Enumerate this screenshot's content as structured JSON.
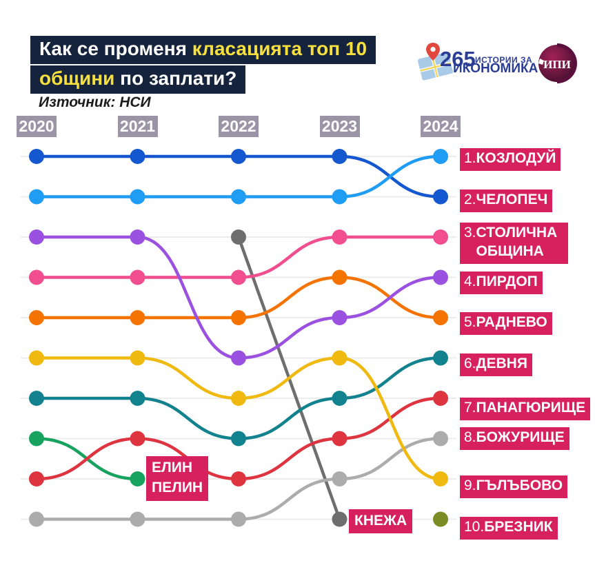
{
  "title": {
    "line1_white": "Как се променя ",
    "line1_yellow": "класацията топ 10",
    "line2_yellow": "общини",
    "line2_white": " по заплати?",
    "source": "Източник: НСИ"
  },
  "logo": {
    "number": "265",
    "tagline_top": "ИСТОРИИ ЗА",
    "tagline_bottom": "ИКОНОМИКА",
    "badge": "ИПИ"
  },
  "colors": {
    "title_bg": "#16233C",
    "title_yellow": "#F6E03E",
    "label_bg": "#D7215E",
    "year_chip_bg": "#9B93A6",
    "gridline": "#ececec",
    "logo_navy": "#2B3C94"
  },
  "chart_data": {
    "type": "line",
    "subtype": "bump-ranking",
    "x": [
      "2020",
      "2021",
      "2022",
      "2023",
      "2024"
    ],
    "rank_axis": {
      "min": 1,
      "max": 10,
      "top_is_best": true
    },
    "grid": true,
    "series": [
      {
        "name": "Козлодуй",
        "color": "#1F9CF4",
        "ranks": [
          2,
          2,
          2,
          2,
          1
        ]
      },
      {
        "name": "Челопеч",
        "color": "#1457CE",
        "ranks": [
          1,
          1,
          1,
          1,
          2
        ]
      },
      {
        "name": "Столична община",
        "color": "#F04E8F",
        "ranks": [
          4,
          4,
          4,
          3,
          3
        ]
      },
      {
        "name": "Пирдоп",
        "color": "#9B51E0",
        "ranks": [
          3,
          3,
          6,
          5,
          4
        ]
      },
      {
        "name": "Раднево",
        "color": "#F57300",
        "ranks": [
          5,
          5,
          5,
          4,
          5
        ]
      },
      {
        "name": "Девня",
        "color": "#12828E",
        "ranks": [
          7,
          7,
          8,
          7,
          6
        ]
      },
      {
        "name": "Панагюрище",
        "color": "#DE3440",
        "ranks": [
          9,
          8,
          9,
          8,
          7
        ]
      },
      {
        "name": "Божурище",
        "color": "#ACACAC",
        "ranks": [
          10,
          10,
          10,
          9,
          8
        ]
      },
      {
        "name": "Гълъбово",
        "color": "#F0B90F",
        "ranks": [
          6,
          6,
          7,
          6,
          9
        ]
      },
      {
        "name": "Брезник",
        "color": "#7C8C24",
        "ranks": [
          null,
          null,
          null,
          null,
          10
        ]
      },
      {
        "name": "Елин Пелин",
        "color": "#17A35F",
        "ranks": [
          8,
          9,
          null,
          null,
          null
        ],
        "exit_label": "ЕЛИН\nПЕЛИН"
      },
      {
        "name": "Кнежа",
        "color": "#6E6E6E",
        "ranks": [
          null,
          null,
          3,
          10,
          null
        ],
        "straight": true,
        "exit_label": "КНЕЖА"
      }
    ],
    "ranking_labels": [
      {
        "rank": "1.",
        "name": "КОЗЛОДУЙ"
      },
      {
        "rank": "2.",
        "name": "ЧЕЛОПЕЧ"
      },
      {
        "rank": "3.",
        "name": "СТОЛИЧНА ОБЩИНА"
      },
      {
        "rank": "4.",
        "name": "ПИРДОП"
      },
      {
        "rank": "5.",
        "name": "РАДНЕВО"
      },
      {
        "rank": "6.",
        "name": "ДЕВНЯ"
      },
      {
        "rank": "7.",
        "name": "ПАНАГЮРИЩЕ"
      },
      {
        "rank": "8.",
        "name": "БОЖУРИЩЕ"
      },
      {
        "rank": "9.",
        "name": "ГЪЛЪБОВО"
      },
      {
        "rank": "10.",
        "name": "БРЕЗНИК"
      }
    ]
  }
}
